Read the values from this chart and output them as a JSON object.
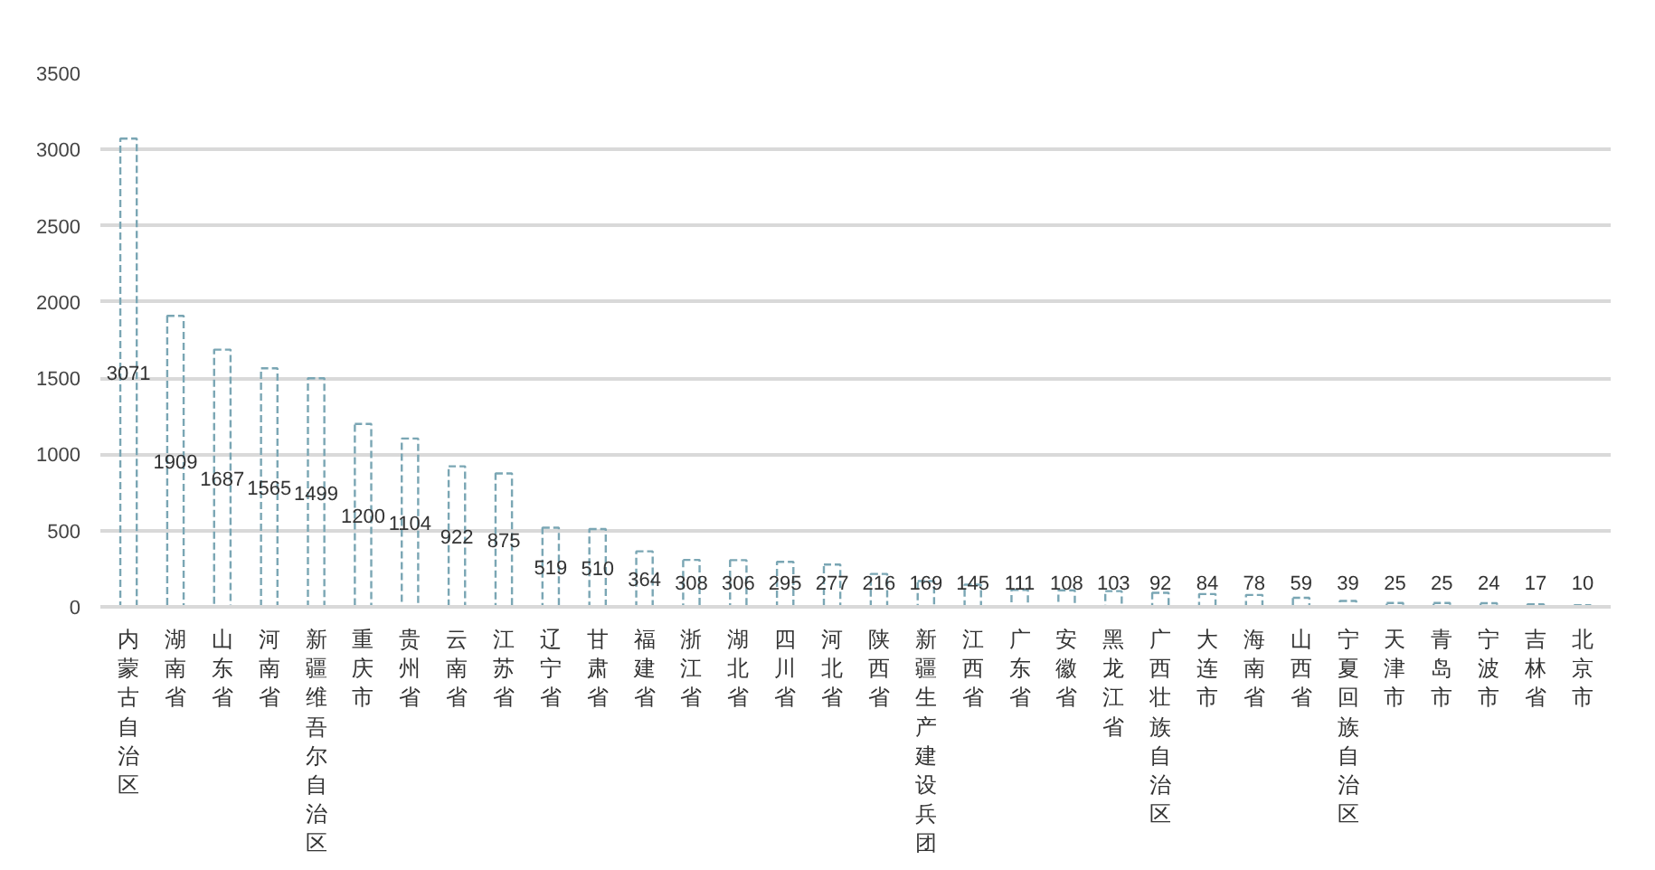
{
  "chart_data": {
    "type": "bar",
    "categories": [
      "内蒙古自治区",
      "湖南省",
      "山东省",
      "河南省",
      "新疆维吾尔自治区",
      "重庆市",
      "贵州省",
      "云南省",
      "江苏省",
      "辽宁省",
      "甘肃省",
      "福建省",
      "浙江省",
      "湖北省",
      "四川省",
      "河北省",
      "陕西省",
      "新疆生产建设兵团",
      "江西省",
      "广东省",
      "安徽省",
      "黑龙江省",
      "广西壮族自治区",
      "大连市",
      "海南省",
      "山西省",
      "宁夏回族自治区",
      "天津市",
      "青岛市",
      "宁波市",
      "吉林省",
      "北京市"
    ],
    "values": [
      3071,
      1909,
      1687,
      1565,
      1499,
      1200,
      1104,
      922,
      875,
      519,
      510,
      364,
      308,
      306,
      295,
      277,
      216,
      169,
      145,
      111,
      108,
      103,
      92,
      84,
      78,
      59,
      39,
      25,
      25,
      24,
      17,
      10
    ],
    "color": "#7aa6b4",
    "ylim": [
      0,
      3500
    ],
    "yticks": [
      0,
      500,
      1000,
      1500,
      2000,
      2500,
      3000,
      3500
    ],
    "grid": "y",
    "data_labels": true,
    "line_style": "dashed"
  }
}
